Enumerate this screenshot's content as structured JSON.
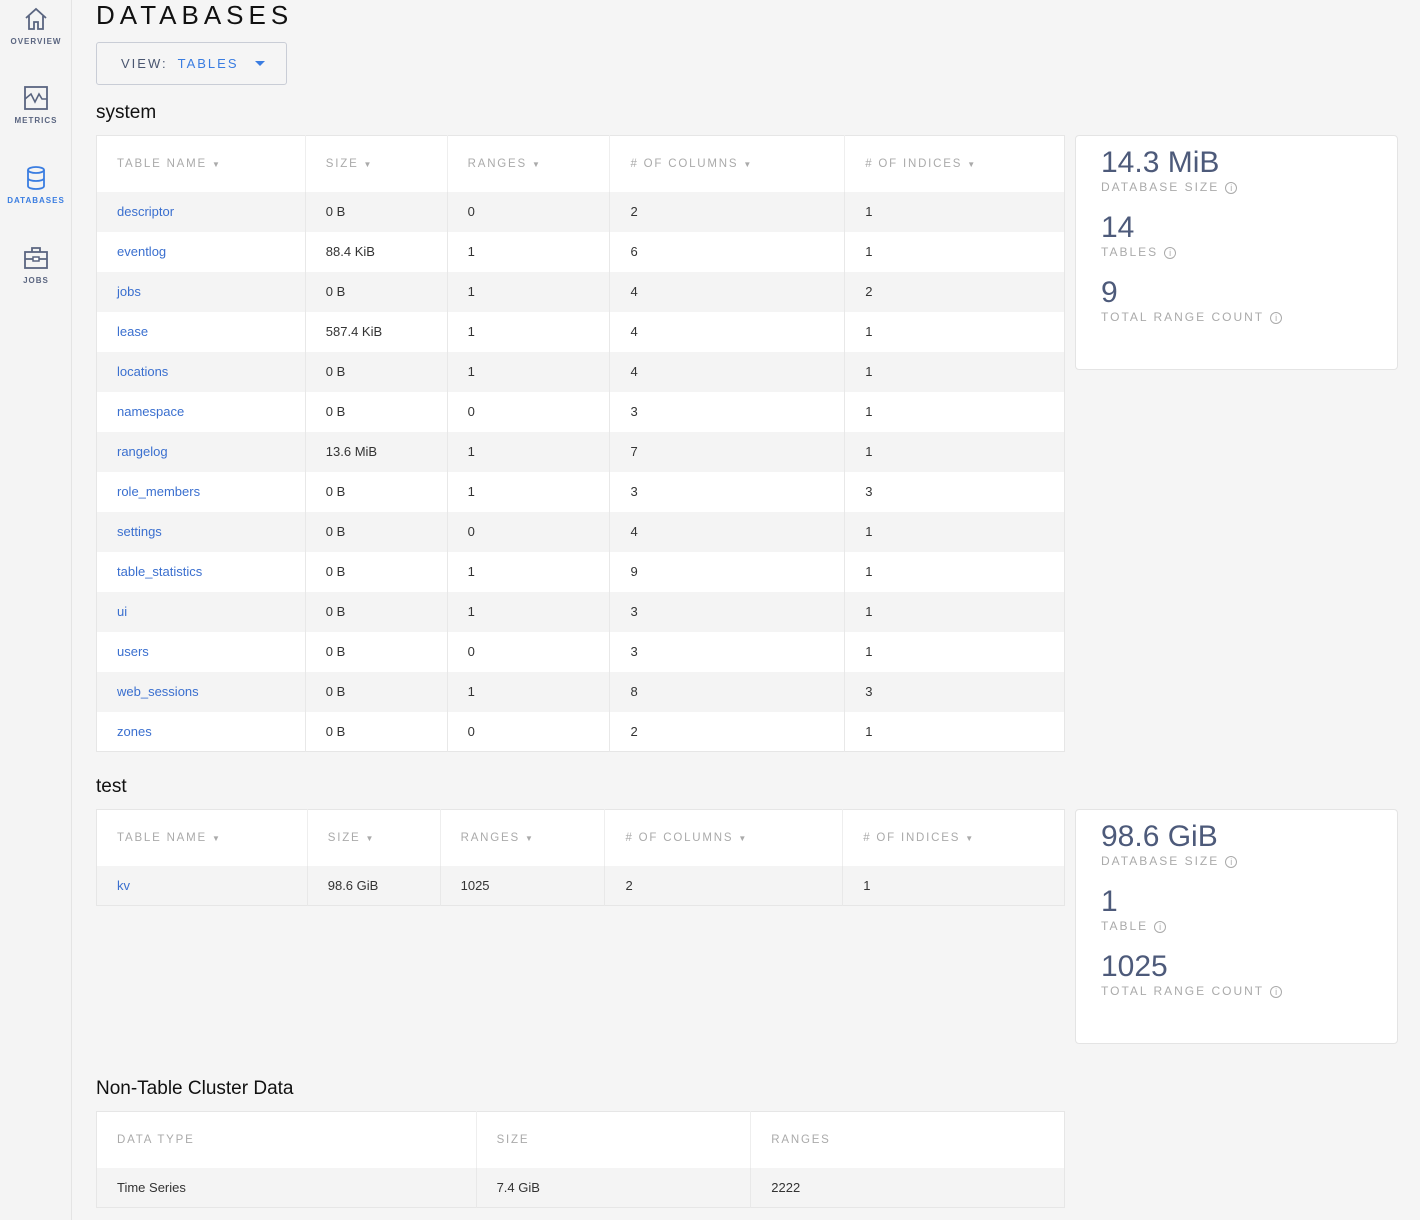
{
  "sidebar": {
    "items": [
      {
        "label": "OVERVIEW",
        "icon": "home-icon"
      },
      {
        "label": "METRICS",
        "icon": "metrics-icon"
      },
      {
        "label": "DATABASES",
        "icon": "database-icon",
        "active": true
      },
      {
        "label": "JOBS",
        "icon": "briefcase-icon"
      }
    ]
  },
  "page": {
    "title": "DATABASES",
    "view_label": "VIEW:",
    "view_value": "TABLES"
  },
  "colors": {
    "accent": "#3a7de1",
    "link": "#3a6fcf",
    "stat": "#4d5a7a"
  },
  "databases": [
    {
      "name": "system",
      "headers": [
        "TABLE NAME",
        "SIZE",
        "RANGES",
        "# OF COLUMNS",
        "# OF INDICES"
      ],
      "rows": [
        [
          "descriptor",
          "0 B",
          "0",
          "2",
          "1"
        ],
        [
          "eventlog",
          "88.4 KiB",
          "1",
          "6",
          "1"
        ],
        [
          "jobs",
          "0 B",
          "1",
          "4",
          "2"
        ],
        [
          "lease",
          "587.4 KiB",
          "1",
          "4",
          "1"
        ],
        [
          "locations",
          "0 B",
          "1",
          "4",
          "1"
        ],
        [
          "namespace",
          "0 B",
          "0",
          "3",
          "1"
        ],
        [
          "rangelog",
          "13.6 MiB",
          "1",
          "7",
          "1"
        ],
        [
          "role_members",
          "0 B",
          "1",
          "3",
          "3"
        ],
        [
          "settings",
          "0 B",
          "0",
          "4",
          "1"
        ],
        [
          "table_statistics",
          "0 B",
          "1",
          "9",
          "1"
        ],
        [
          "ui",
          "0 B",
          "1",
          "3",
          "1"
        ],
        [
          "users",
          "0 B",
          "0",
          "3",
          "1"
        ],
        [
          "web_sessions",
          "0 B",
          "1",
          "8",
          "3"
        ],
        [
          "zones",
          "0 B",
          "0",
          "2",
          "1"
        ]
      ],
      "summary": [
        {
          "value": "14.3 MiB",
          "label": "DATABASE SIZE"
        },
        {
          "value": "14",
          "label": "TABLES"
        },
        {
          "value": "9",
          "label": "TOTAL RANGE COUNT"
        }
      ]
    },
    {
      "name": "test",
      "headers": [
        "TABLE NAME",
        "SIZE",
        "RANGES",
        "# OF COLUMNS",
        "# OF INDICES"
      ],
      "rows": [
        [
          "kv",
          "98.6 GiB",
          "1025",
          "2",
          "1"
        ]
      ],
      "summary": [
        {
          "value": "98.6 GiB",
          "label": "DATABASE SIZE"
        },
        {
          "value": "1",
          "label": "TABLE"
        },
        {
          "value": "1025",
          "label": "TOTAL RANGE COUNT"
        }
      ]
    }
  ],
  "non_table": {
    "title": "Non-Table Cluster Data",
    "headers": [
      "DATA TYPE",
      "SIZE",
      "RANGES"
    ],
    "rows": [
      [
        "Time Series",
        "7.4 GiB",
        "2222"
      ]
    ]
  }
}
